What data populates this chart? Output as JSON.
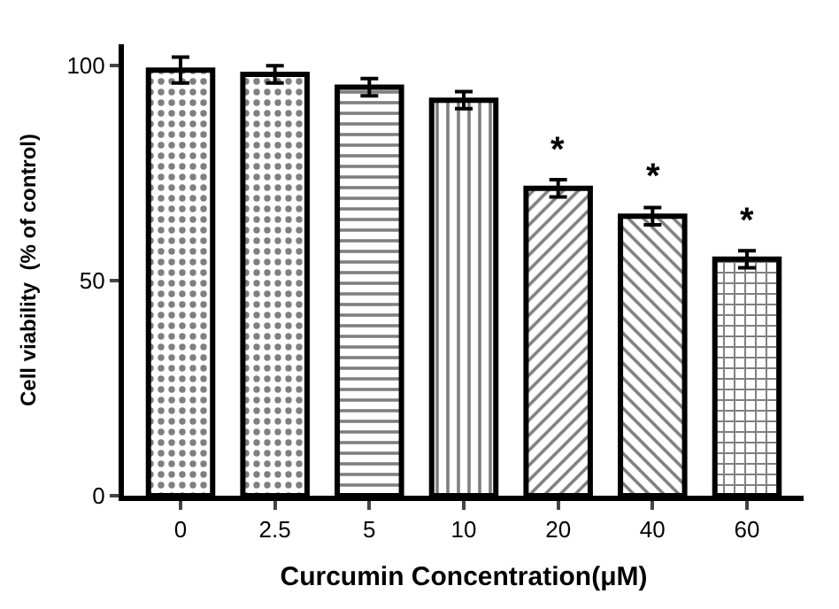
{
  "chart_data": {
    "type": "bar",
    "xlabel": "Curcumin Concentration(μM)",
    "ylabel": "Cell viability  (% of control)",
    "categories": [
      "0",
      "2.5",
      "5",
      "10",
      "20",
      "40",
      "60"
    ],
    "values": [
      99,
      98,
      95,
      92,
      71.5,
      65,
      55
    ],
    "errors": [
      3,
      2,
      2,
      2,
      2,
      2,
      2
    ],
    "color": "#000000",
    "ylim": [
      0,
      105
    ],
    "yticks": [
      0,
      50,
      100
    ],
    "annotations": [
      "*",
      "*",
      "*"
    ]
  }
}
